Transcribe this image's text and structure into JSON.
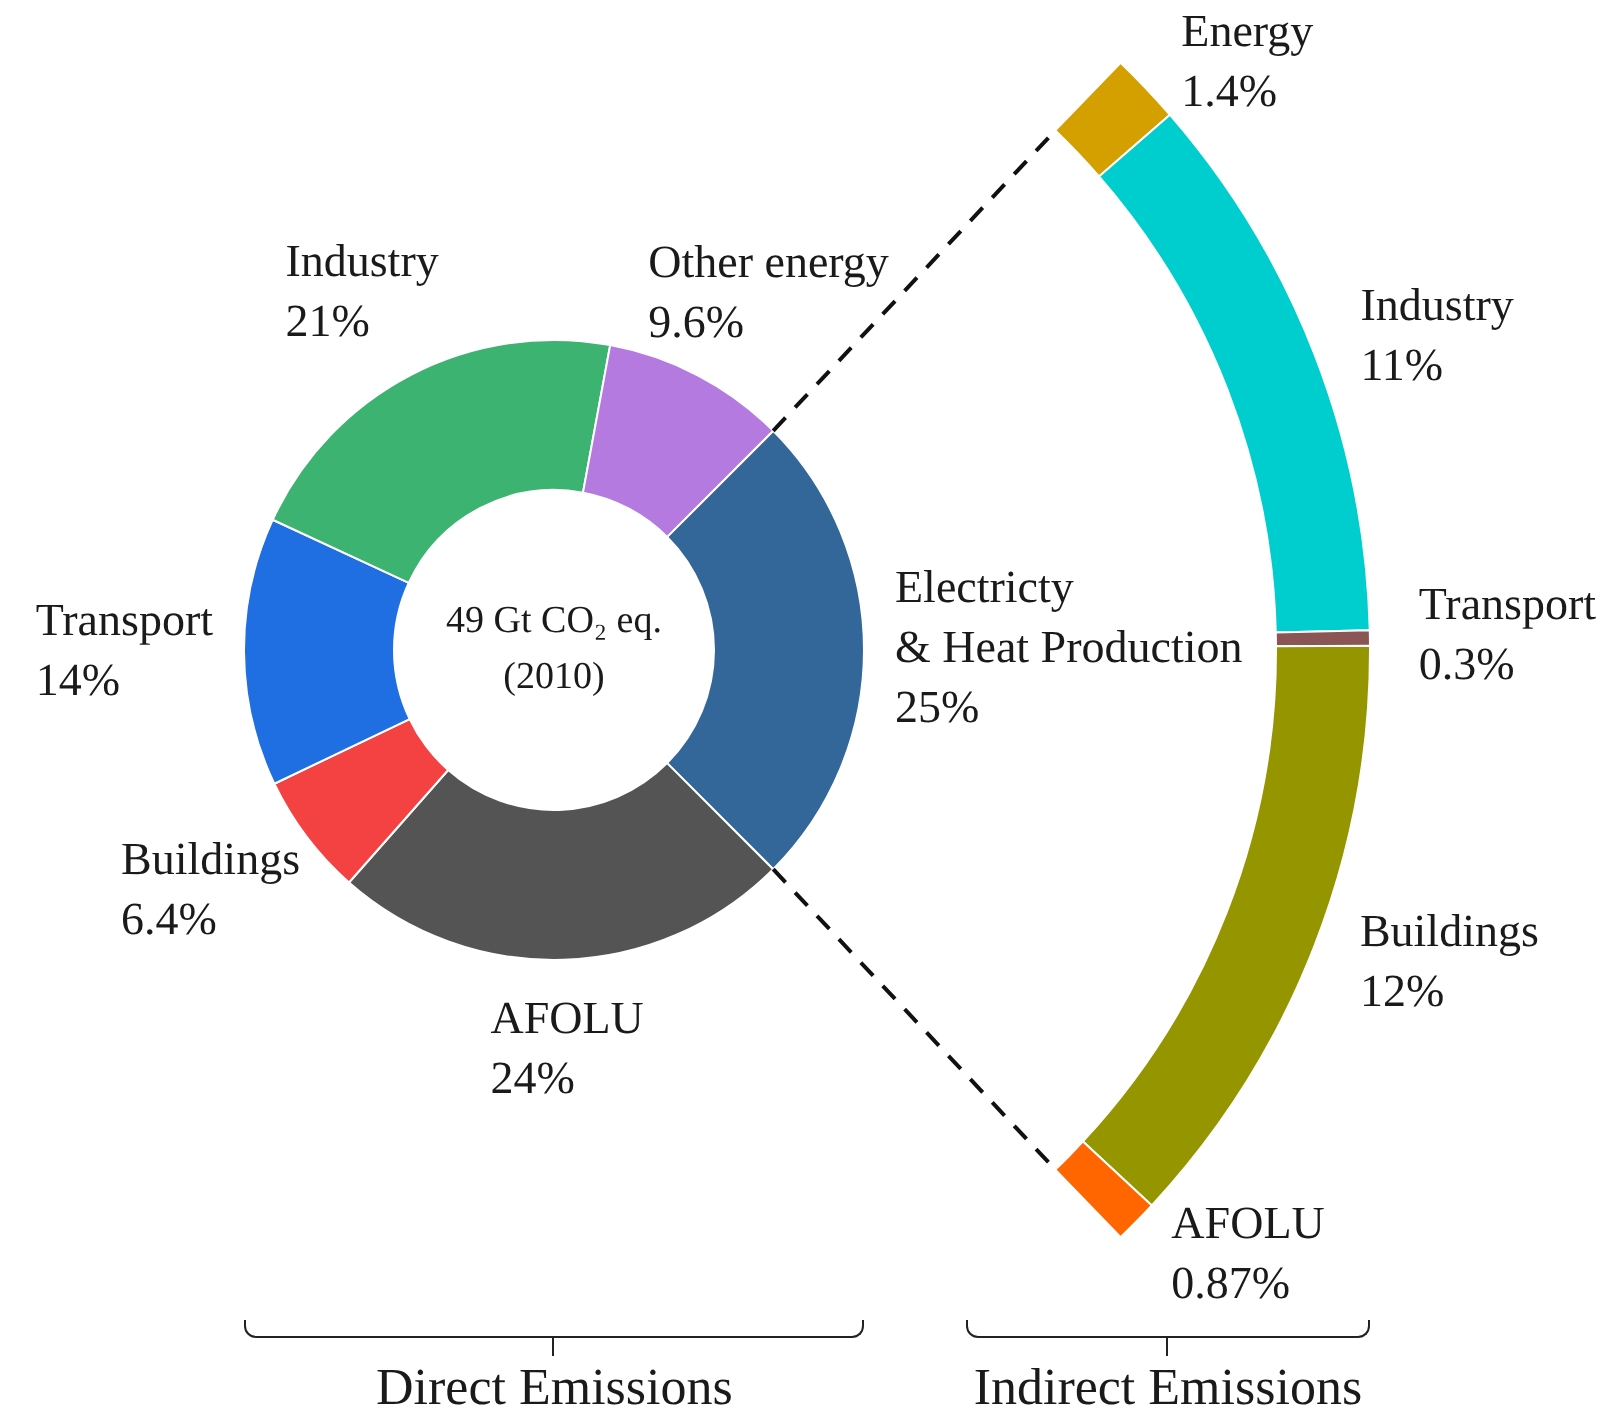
{
  "chart_data": [
    {
      "type": "donut",
      "categories": [
        "Electricty & Heat Production",
        "AFOLU",
        "Buildings",
        "Transport",
        "Industry",
        "Other energy"
      ],
      "values": [
        25,
        24,
        6.4,
        14,
        21,
        9.6
      ],
      "value_labels": [
        "25%",
        "24%",
        "6.4%",
        "14%",
        "21%",
        "9.6%"
      ],
      "colors": [
        "#336699",
        "#545454",
        "#f44242",
        "#1f6fe3",
        "#3cb371",
        "#b47ae0"
      ],
      "annotations": [
        "49 Gt CO₂ eq.",
        "(2010)"
      ],
      "xlabel": "Direct Emissions"
    },
    {
      "type": "donut",
      "categories": [
        "Energy",
        "Industry",
        "Transport",
        "Buildings",
        "AFOLU"
      ],
      "values": [
        1.4,
        11,
        0.3,
        12,
        0.87
      ],
      "value_labels": [
        "1.4%",
        "11%",
        "0.3%",
        "12%",
        "0.87%"
      ],
      "colors": [
        "#d4a000",
        "#00cdcd",
        "#8b5555",
        "#959500",
        "#ff6600"
      ],
      "xlabel": "Indirect Emissions"
    }
  ]
}
